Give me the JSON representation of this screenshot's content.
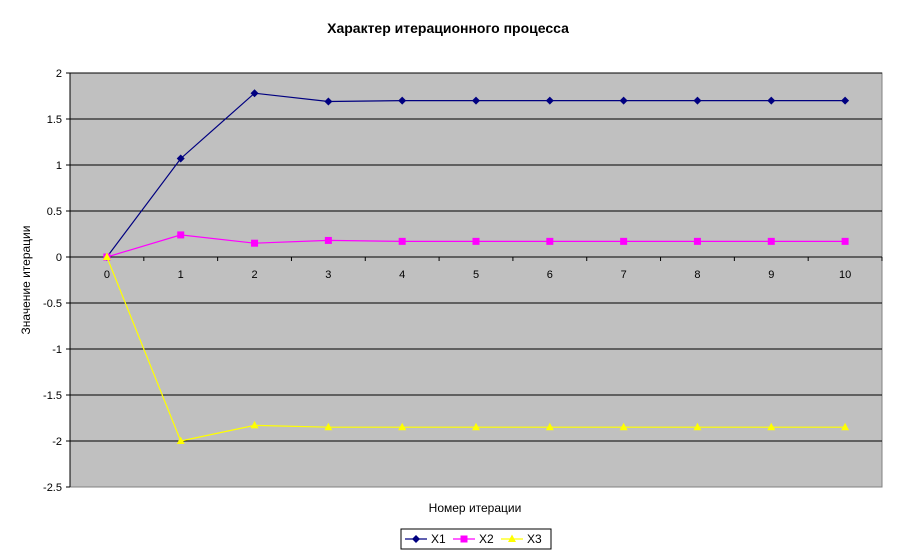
{
  "chart_data": {
    "type": "line",
    "title": "Характер итерационного процесса",
    "xlabel": "Номер итерации",
    "ylabel": "Значение итерации",
    "x": [
      0,
      1,
      2,
      3,
      4,
      5,
      6,
      7,
      8,
      9,
      10
    ],
    "x_tick_labels": [
      "0",
      "1",
      "2",
      "3",
      "4",
      "5",
      "6",
      "7",
      "8",
      "9",
      "10"
    ],
    "ylim": [
      -2.5,
      2
    ],
    "y_tick_values": [
      2,
      1.5,
      1,
      0.5,
      0,
      -0.5,
      -1,
      -1.5,
      -2,
      -2.5
    ],
    "y_tick_labels": [
      "2",
      "1.5",
      "1",
      "0.5",
      "0",
      "-0.5",
      "-1",
      "-1.5",
      "-2",
      "-2.5"
    ],
    "grid": true,
    "plot_background": "#c0c0c0",
    "legend_position": "bottom",
    "series": [
      {
        "name": "X1",
        "color": "#000080",
        "marker": "diamond",
        "values": [
          0,
          1.07,
          1.78,
          1.69,
          1.7,
          1.7,
          1.7,
          1.7,
          1.7,
          1.7,
          1.7
        ]
      },
      {
        "name": "X2",
        "color": "#ff00ff",
        "marker": "square",
        "values": [
          0,
          0.24,
          0.15,
          0.18,
          0.17,
          0.17,
          0.17,
          0.17,
          0.17,
          0.17,
          0.17
        ]
      },
      {
        "name": "X3",
        "color": "#ffff00",
        "marker": "triangle",
        "values": [
          0,
          -2.0,
          -1.83,
          -1.85,
          -1.85,
          -1.85,
          -1.85,
          -1.85,
          -1.85,
          -1.85,
          -1.85
        ]
      }
    ]
  }
}
